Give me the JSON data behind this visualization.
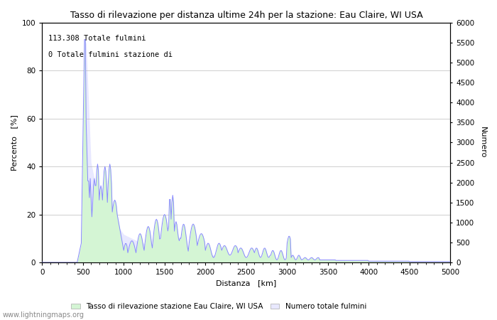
{
  "title": "Tasso di rilevazione per distanza ultime 24h per la stazione: Eau Claire, WI USA",
  "xlabel": "Distanza   [km]",
  "ylabel_left": "Percento   [%]",
  "ylabel_right": "Numero",
  "annotation_line1": "113.308 Totale fulmini",
  "annotation_line2": "0 Totale fulmini stazione di",
  "xlim": [
    0,
    5000
  ],
  "ylim_left": [
    0,
    100
  ],
  "ylim_right": [
    0,
    6000
  ],
  "xticks": [
    0,
    500,
    1000,
    1500,
    2000,
    2500,
    3000,
    3500,
    4000,
    4500,
    5000
  ],
  "yticks_left": [
    0,
    20,
    40,
    60,
    80,
    100
  ],
  "yticks_right": [
    0,
    500,
    1000,
    1500,
    2000,
    2500,
    3000,
    3500,
    4000,
    4500,
    5000,
    5500,
    6000
  ],
  "legend_label_green": "Tasso di rilevazione stazione Eau Claire, WI USA",
  "legend_label_blue": "Numero totale fulmini",
  "watermark": "www.lightningmaps.org",
  "bg_color": "#ffffff",
  "grid_color": "#bbbbbb",
  "line_color": "#8888ff",
  "fill_color_detection": "#e8e8ff",
  "fill_color_green": "#d4f5d4",
  "title_fontsize": 9,
  "axis_fontsize": 8,
  "tick_fontsize": 7.5,
  "annotation_fontsize": 7.5
}
